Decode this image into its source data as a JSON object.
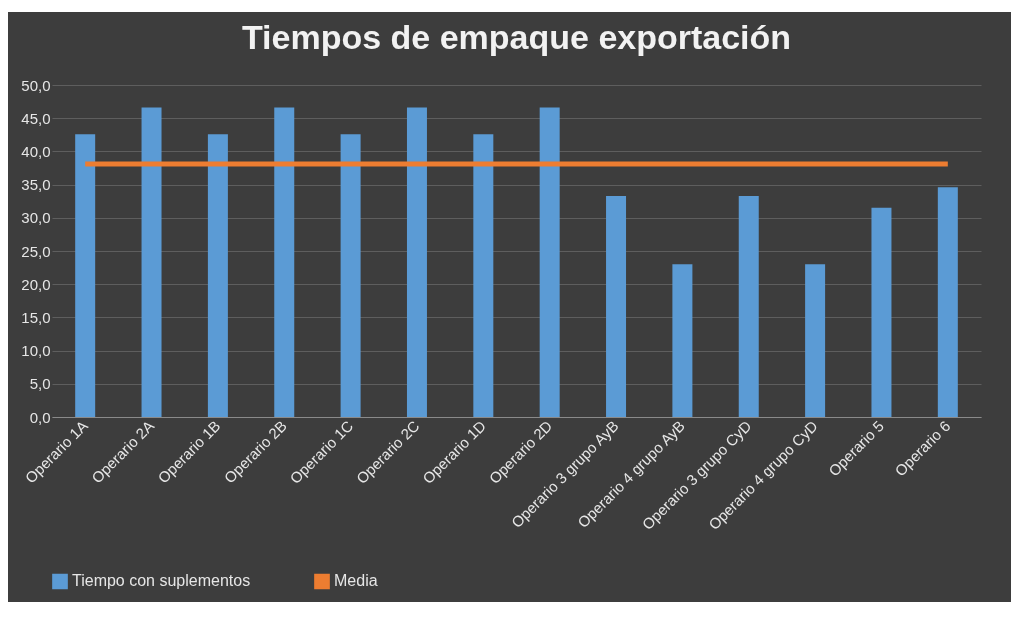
{
  "chart_data": {
    "type": "bar",
    "title": "Tiempos de empaque exportación",
    "categories": [
      "Operario 1A",
      "Operario 2A",
      "Operario 1B",
      "Operario 2B",
      "Operario 1C",
      "Operario 2C",
      "Operario 1D",
      "Operario 2D",
      "Operario 3 grupo AyB",
      "Operario 4 grupo AyB",
      "Operario 3 grupo CyD",
      "Operario 4 grupo CyD",
      "Operario 5",
      "Operario 6"
    ],
    "series": [
      {
        "name": "Tiempo con suplementos",
        "color": "#5b9bd5",
        "values": [
          42.6,
          46.6,
          42.6,
          46.6,
          42.6,
          46.6,
          42.6,
          46.6,
          33.3,
          23.0,
          33.3,
          23.0,
          31.5,
          34.6
        ]
      },
      {
        "name": "Media",
        "type": "line",
        "color": "#ed7d31",
        "values": [
          38.1,
          38.1,
          38.1,
          38.1,
          38.1,
          38.1,
          38.1,
          38.1,
          38.1,
          38.1,
          38.1,
          38.1,
          38.1,
          38.1
        ]
      }
    ],
    "ylim": [
      0,
      50
    ],
    "yticks": [
      {
        "value": 0,
        "label": "0,0"
      },
      {
        "value": 5,
        "label": "5,0"
      },
      {
        "value": 10,
        "label": "10,0"
      },
      {
        "value": 15,
        "label": "15,0"
      },
      {
        "value": 20,
        "label": "20,0"
      },
      {
        "value": 25,
        "label": "25,0"
      },
      {
        "value": 30,
        "label": "30,0"
      },
      {
        "value": 35,
        "label": "35,0"
      },
      {
        "value": 40,
        "label": "40,0"
      },
      {
        "value": 45,
        "label": "45,0"
      },
      {
        "value": 50,
        "label": "50,0"
      }
    ],
    "grid": "y",
    "legend": "bottom"
  }
}
